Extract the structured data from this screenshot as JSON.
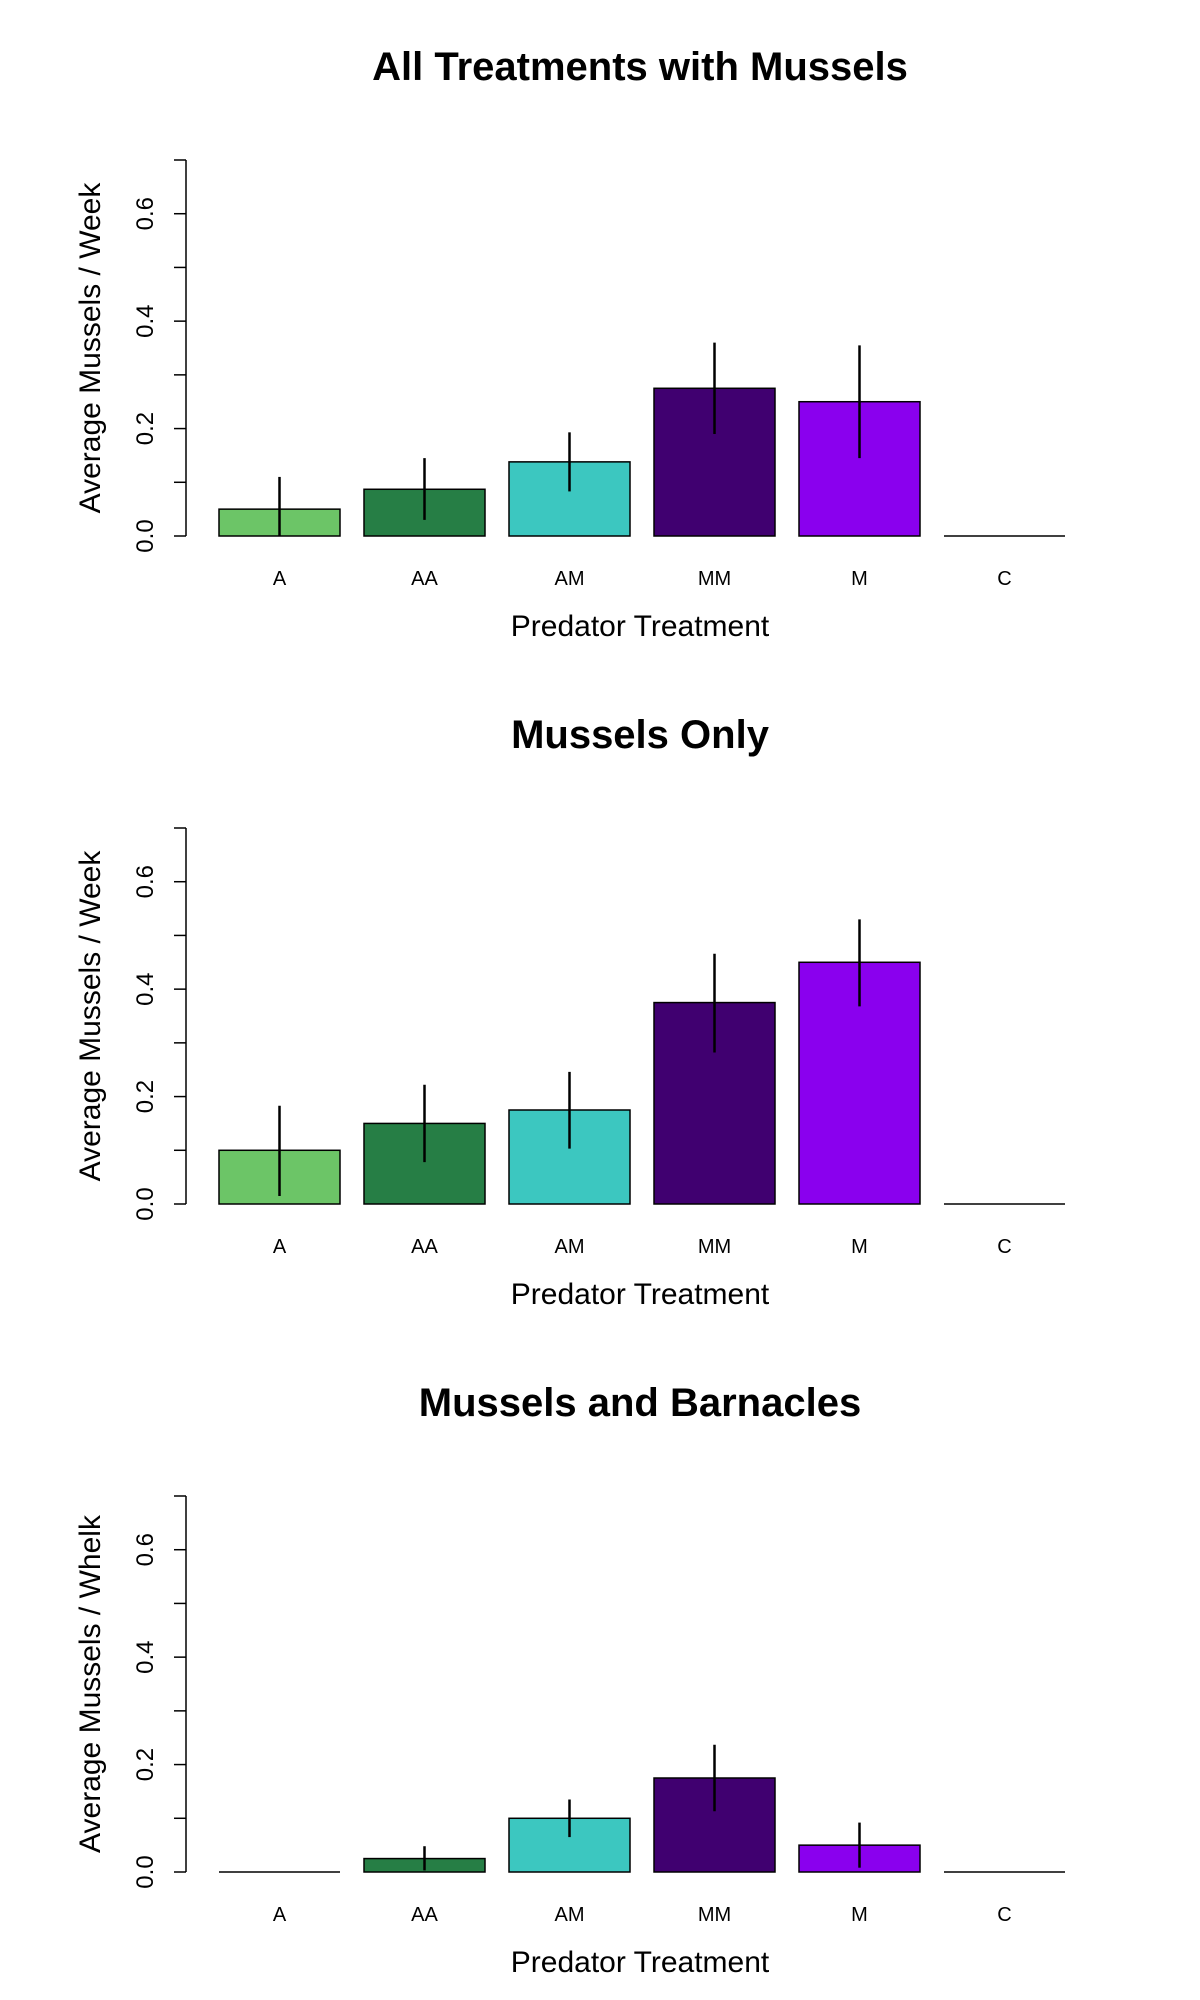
{
  "chart_data": [
    {
      "type": "bar",
      "title": "All Treatments with Mussels",
      "xlabel": "Predator Treatment",
      "ylabel": "Average Mussels / Week",
      "ylim": [
        0,
        0.7
      ],
      "yticks": [
        "0.0",
        "0.2",
        "0.4",
        "0.6"
      ],
      "categories": [
        "A",
        "AA",
        "AM",
        "MM",
        "M",
        "C"
      ],
      "values": [
        0.05,
        0.087,
        0.138,
        0.275,
        0.25,
        0.0
      ],
      "error_low": [
        0.0,
        0.03,
        0.083,
        0.19,
        0.145,
        0.0
      ],
      "error_high": [
        0.11,
        0.145,
        0.193,
        0.36,
        0.355,
        0.0
      ],
      "colors": [
        "#6CC567",
        "#267E45",
        "#3CC7C0",
        "#400070",
        "#8A00EE",
        "#FFFFFF"
      ]
    },
    {
      "type": "bar",
      "title": "Mussels Only",
      "xlabel": "Predator Treatment",
      "ylabel": "Average Mussels / Week",
      "ylim": [
        0,
        0.7
      ],
      "yticks": [
        "0.0",
        "0.2",
        "0.4",
        "0.6"
      ],
      "categories": [
        "A",
        "AA",
        "AM",
        "MM",
        "M",
        "C"
      ],
      "values": [
        0.1,
        0.15,
        0.175,
        0.375,
        0.45,
        0.0
      ],
      "error_low": [
        0.015,
        0.078,
        0.103,
        0.282,
        0.368,
        0.0
      ],
      "error_high": [
        0.183,
        0.222,
        0.246,
        0.466,
        0.53,
        0.0
      ],
      "colors": [
        "#6CC567",
        "#267E45",
        "#3CC7C0",
        "#400070",
        "#8A00EE",
        "#FFFFFF"
      ]
    },
    {
      "type": "bar",
      "title": "Mussels and Barnacles",
      "xlabel": "Predator Treatment",
      "ylabel": "Average Mussels / Whelk",
      "ylim": [
        0,
        0.7
      ],
      "yticks": [
        "0.0",
        "0.2",
        "0.4",
        "0.6"
      ],
      "categories": [
        "A",
        "AA",
        "AM",
        "MM",
        "M",
        "C"
      ],
      "values": [
        0.0,
        0.025,
        0.1,
        0.175,
        0.05,
        0.0
      ],
      "error_low": [
        0.0,
        0.003,
        0.065,
        0.113,
        0.008,
        0.0
      ],
      "error_high": [
        0.0,
        0.048,
        0.135,
        0.237,
        0.092,
        0.0
      ],
      "colors": [
        "#6CC567",
        "#267E45",
        "#3CC7C0",
        "#400070",
        "#8A00EE",
        "#FFFFFF"
      ]
    }
  ]
}
